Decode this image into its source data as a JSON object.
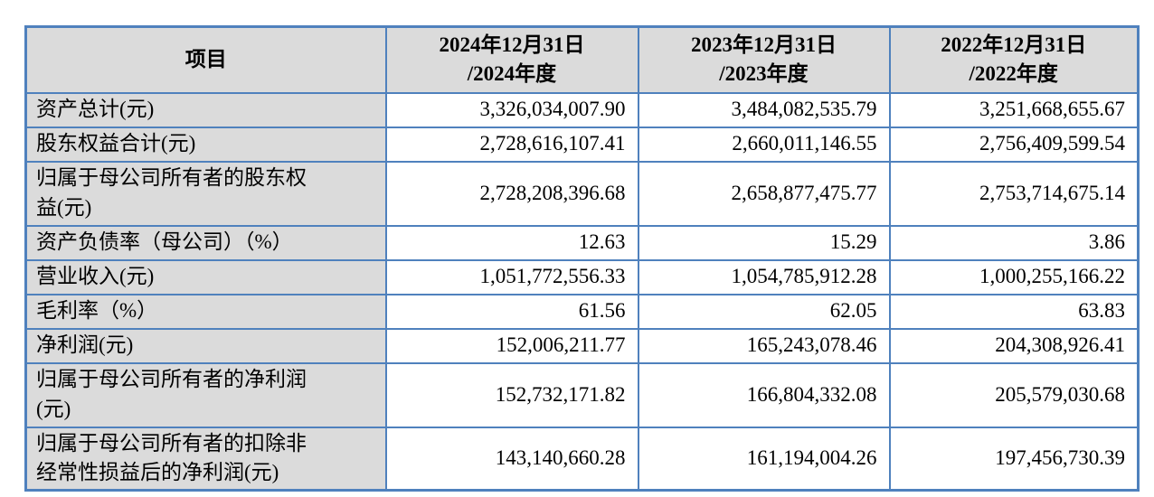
{
  "colors": {
    "border_blue": "#4f81bd",
    "shade_gray": "#dbdbdb",
    "text": "#000000",
    "background": "#ffffff"
  },
  "table": {
    "header": {
      "item": "项目",
      "col_2024": [
        "2024年12月31日",
        "/2024年度"
      ],
      "col_2023": [
        "2023年12月31日",
        "/2023年度"
      ],
      "col_2022": [
        "2022年12月31日",
        "/2022年度"
      ]
    },
    "rows": [
      {
        "label": "资产总计(元)",
        "values": [
          "3,326,034,007.90",
          "3,484,082,535.79",
          "3,251,668,655.67"
        ]
      },
      {
        "label": "股东权益合计(元)",
        "values": [
          "2,728,616,107.41",
          "2,660,011,146.55",
          "2,756,409,599.54"
        ]
      },
      {
        "label": [
          "归属于母公司所有者的股东权",
          "益(元)"
        ],
        "values": [
          "2,728,208,396.68",
          "2,658,877,475.77",
          "2,753,714,675.14"
        ]
      },
      {
        "label": "资产负债率（母公司）（%）",
        "values": [
          "12.63",
          "15.29",
          "3.86"
        ]
      },
      {
        "label": "营业收入(元)",
        "values": [
          "1,051,772,556.33",
          "1,054,785,912.28",
          "1,000,255,166.22"
        ]
      },
      {
        "label": "毛利率（%）",
        "values": [
          "61.56",
          "62.05",
          "63.83"
        ]
      },
      {
        "label": "净利润(元)",
        "values": [
          "152,006,211.77",
          "165,243,078.46",
          "204,308,926.41"
        ]
      },
      {
        "label": [
          "归属于母公司所有者的净利润",
          "(元)"
        ],
        "values": [
          "152,732,171.82",
          "166,804,332.08",
          "205,579,030.68"
        ]
      },
      {
        "label": [
          "归属于母公司所有者的扣除非",
          "经常性损益后的净利润(元)"
        ],
        "values": [
          "143,140,660.28",
          "161,194,004.26",
          "197,456,730.39"
        ]
      }
    ]
  }
}
